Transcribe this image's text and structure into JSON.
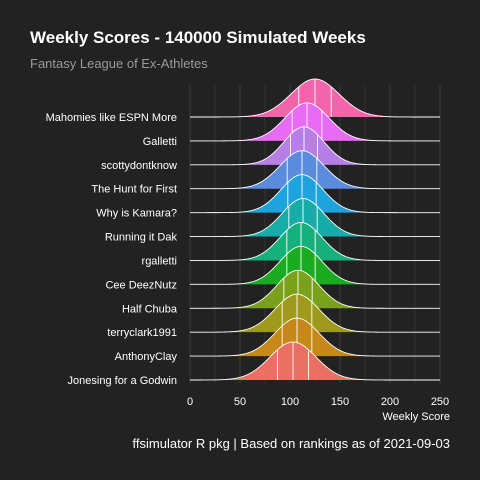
{
  "title": "Weekly Scores - 140000 Simulated Weeks",
  "subtitle": "Fantasy League of Ex-Athletes",
  "caption": "ffsimulator R pkg | Based on rankings as of 2021-09-03",
  "colors": {
    "background": "#222222",
    "text": "#ffffff",
    "subtitle": "#9a9a9a",
    "grid": "#444444"
  },
  "chart_data": {
    "type": "ridgeline",
    "xlabel": "Weekly Score",
    "ylabel": "",
    "xlim": [
      0,
      250
    ],
    "xticks": [
      0,
      50,
      100,
      150,
      200,
      250
    ],
    "grid": true,
    "quantile_lines": [
      0.25,
      0.5,
      0.75
    ],
    "series": [
      {
        "name": "Mahomies like ESPN More",
        "mean": 125,
        "sd": 24,
        "color": "#f365aa"
      },
      {
        "name": "Galletti",
        "mean": 117,
        "sd": 22,
        "color": "#e76bf3"
      },
      {
        "name": "scottydontknow",
        "mean": 114,
        "sd": 20,
        "color": "#b77fe6"
      },
      {
        "name": "The Hunt for First",
        "mean": 112,
        "sd": 22,
        "color": "#5a8bdd"
      },
      {
        "name": "Why is Kamara?",
        "mean": 112,
        "sd": 21,
        "color": "#1fa3dd"
      },
      {
        "name": "Running it Dak",
        "mean": 113,
        "sd": 21,
        "color": "#16aca8"
      },
      {
        "name": "rgalletti",
        "mean": 111,
        "sd": 21,
        "color": "#15b07b"
      },
      {
        "name": "Cee DeezNutz",
        "mean": 111,
        "sd": 21,
        "color": "#19ab20"
      },
      {
        "name": "Half Chuba",
        "mean": 108,
        "sd": 21,
        "color": "#79a21a"
      },
      {
        "name": "terryclark1991",
        "mean": 107,
        "sd": 22,
        "color": "#9f9a1b"
      },
      {
        "name": "AnthonyClay",
        "mean": 107,
        "sd": 22,
        "color": "#c68819"
      },
      {
        "name": "Jonesing for a Godwin",
        "mean": 103,
        "sd": 23,
        "color": "#ea7064"
      }
    ]
  }
}
